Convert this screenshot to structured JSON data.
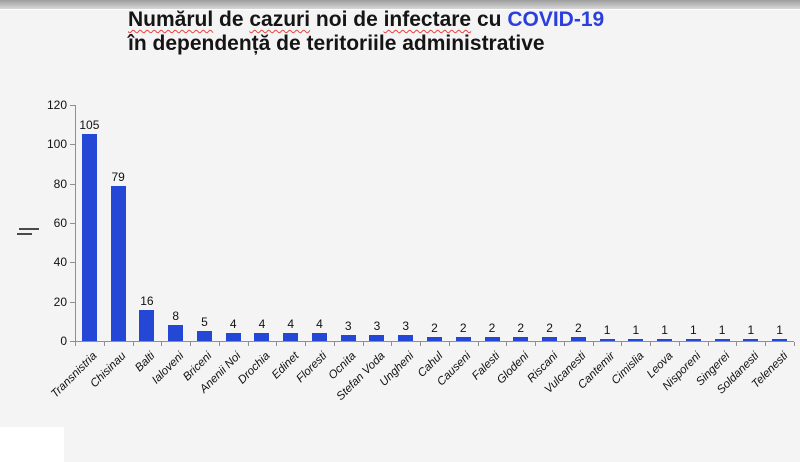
{
  "window": {
    "top_strip": "window-chrome-strip"
  },
  "title": {
    "line1_parts": [
      {
        "text": "Numărul",
        "squiggle": true
      },
      {
        "text": " de ",
        "squiggle": false
      },
      {
        "text": "cazuri",
        "squiggle": true
      },
      {
        "text": " noi de ",
        "squiggle": false
      },
      {
        "text": "infectare",
        "squiggle": true
      },
      {
        "text": " cu ",
        "squiggle": false
      },
      {
        "text": "COVID-19",
        "squiggle": false,
        "accent": true
      }
    ],
    "line2": "în dependență de teritoriile administrative"
  },
  "chart_data": {
    "type": "bar",
    "title": "Numărul de cazuri noi de infectare cu COVID-19 în dependență de teritoriile administrative",
    "categories": [
      "Transnistria",
      "Chisinau",
      "Balti",
      "Ialoveni",
      "Briceni",
      "Anenii Noi",
      "Drochia",
      "Edinet",
      "Floresti",
      "Ocnita",
      "Stefan Voda",
      "Ungheni",
      "Cahul",
      "Causeni",
      "Falesti",
      "Glodeni",
      "Riscani",
      "Vulcanesti",
      "Cantemir",
      "Cimislia",
      "Leova",
      "Nisporeni",
      "Singerei",
      "Soldanesti",
      "Telenesti"
    ],
    "values": [
      105,
      79,
      16,
      8,
      5,
      4,
      4,
      4,
      4,
      3,
      3,
      3,
      2,
      2,
      2,
      2,
      2,
      2,
      1,
      1,
      1,
      1,
      1,
      1,
      1
    ],
    "xlabel": "",
    "ylabel": "",
    "ylim": [
      0,
      120
    ],
    "yticks": [
      0,
      20,
      40,
      60,
      80,
      100,
      120
    ],
    "grid": false,
    "legend": false,
    "value_labels_shown": true,
    "x_labels_rotation_deg": 45,
    "x_labels_style": "italic"
  },
  "colors": {
    "bar": "#2447d6",
    "title_accent": "#2b3fdc",
    "title_text": "#151515",
    "squiggle": "#e8413c",
    "axis": "#8f8f8f",
    "background": "#f4f4f5"
  }
}
